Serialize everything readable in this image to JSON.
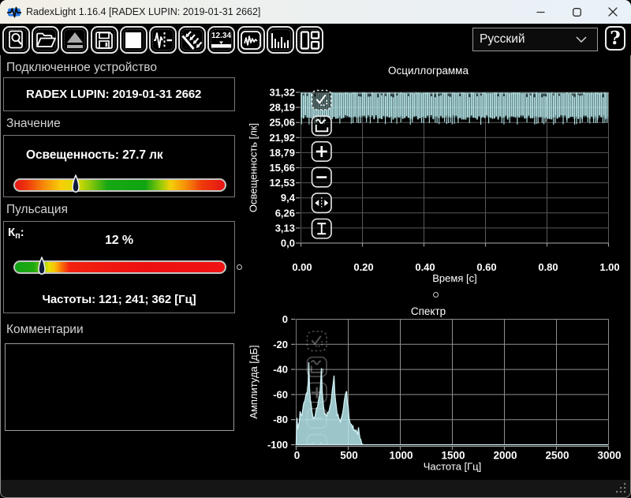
{
  "window": {
    "title": "RadexLight 1.16.4 [RADEX LUPIN: 2019-01-31 2662]",
    "caption_buttons": [
      "minimize",
      "maximize",
      "close"
    ]
  },
  "toolbar": {
    "buttons": [
      {
        "icon": "find-device"
      },
      {
        "icon": "open-file"
      },
      {
        "icon": "eject-device"
      },
      {
        "icon": "save-file"
      },
      {
        "icon": "stop-square"
      },
      {
        "icon": "pulsation-wave"
      },
      {
        "icon": "light-rays"
      },
      {
        "icon": "numeric-display"
      },
      {
        "icon": "oscillogram-panel"
      },
      {
        "icon": "spectrum-panel"
      },
      {
        "icon": "layout-panels"
      }
    ],
    "language_select": {
      "value": "Русский"
    },
    "help_label": "?"
  },
  "device_section": {
    "header": "Подключенное устройство",
    "device": "RADEX LUPIN: 2019-01-31 2662"
  },
  "value_section": {
    "header": "Значение",
    "value_label": "Освещенность: 27.7 лк",
    "marker_pct": 29.1,
    "gradient_stops": [
      [
        "#e51414",
        0
      ],
      [
        "#ef3b0b",
        6
      ],
      [
        "#f68c0a",
        14
      ],
      [
        "#f8cf07",
        22
      ],
      [
        "#d8dc07",
        30
      ],
      [
        "#7cc40c",
        37
      ],
      [
        "#17a814",
        44
      ],
      [
        "#0fa411",
        62
      ],
      [
        "#8cc90a",
        69
      ],
      [
        "#f3d007",
        74
      ],
      [
        "#f79208",
        81
      ],
      [
        "#ef3b0b",
        89
      ],
      [
        "#e51414",
        100
      ]
    ]
  },
  "pulsation_section": {
    "header": "Пульсация",
    "kp_base": "К",
    "kp_sub": "п",
    "kp_colon": ":",
    "kp_value": "12 %",
    "freq_label": "Частоты: 121; 241; 362 [Гц]",
    "marker_pct": 12.7,
    "gradient_stops": [
      [
        "#0ea312",
        0
      ],
      [
        "#1fa911",
        9
      ],
      [
        "#79c30b",
        13
      ],
      [
        "#e3e306",
        16
      ],
      [
        "#f8c207",
        19
      ],
      [
        "#f87608",
        22
      ],
      [
        "#f32110",
        26
      ],
      [
        "#ee1010",
        60
      ],
      [
        "#f11313",
        100
      ]
    ]
  },
  "comments_section": {
    "header": "Комментарии",
    "text": ""
  },
  "chart_toolbar": {
    "buttons": [
      {
        "icon": "select-check"
      },
      {
        "icon": "zoom-extents"
      },
      {
        "icon": "zoom-in"
      },
      {
        "icon": "zoom-out"
      },
      {
        "icon": "fit-horizontal"
      },
      {
        "icon": "fit-vertical"
      }
    ]
  },
  "chart_data": [
    {
      "type": "line",
      "name": "oscillogram",
      "title": "Осциллограмма",
      "xlabel": "Время [с]",
      "ylabel": "Освещенность [лк]",
      "xlim": [
        0,
        1
      ],
      "ylim": [
        0,
        31.32
      ],
      "x_tick_labels": [
        "0.00",
        "0.20",
        "0.40",
        "0.60",
        "0.80",
        "1.00"
      ],
      "y_tick_labels": [
        "0,0",
        "3,13",
        "6,26",
        "9,4",
        "12,53",
        "15,66",
        "18,79",
        "21,92",
        "25,06",
        "28,19",
        "31,32"
      ],
      "grid": true,
      "signal": {
        "description": "light flicker waveform, 1 s record",
        "mean_lux": 27.7,
        "min_lux": 24.6,
        "max_lux": 31.3,
        "frequencies_hz": [
          121,
          241,
          362
        ]
      }
    },
    {
      "type": "area",
      "name": "spectrum",
      "title": "Спектр",
      "xlabel": "Частота [Гц]",
      "ylabel": "Амплитуда [дБ]",
      "xlim": [
        0,
        3000
      ],
      "ylim": [
        -100,
        0
      ],
      "x_tick_labels": [
        "0",
        "500",
        "1000",
        "1500",
        "2000",
        "2500",
        "3000"
      ],
      "y_tick_labels": [
        "0",
        "-20",
        "-40",
        "-60",
        "-80",
        "-100"
      ],
      "grid": true,
      "peaks": [
        {
          "freq_hz": 121,
          "db": -33.5
        },
        {
          "freq_hz": 241,
          "db": -34
        },
        {
          "freq_hz": 362,
          "db": -40
        },
        {
          "freq_hz": 483,
          "db": -53
        },
        {
          "freq_hz": 600,
          "db": -82
        }
      ],
      "envelope_db": [
        [
          0,
          -98
        ],
        [
          3,
          -68
        ],
        [
          6,
          -70
        ],
        [
          9,
          -84
        ],
        [
          14,
          -88
        ],
        [
          20,
          -86
        ],
        [
          26,
          -82
        ],
        [
          32,
          -79
        ],
        [
          38,
          -72
        ],
        [
          41,
          -53
        ],
        [
          44,
          -74
        ],
        [
          50,
          -77
        ],
        [
          58,
          -73
        ],
        [
          66,
          -70
        ],
        [
          75,
          -67
        ],
        [
          85,
          -64
        ],
        [
          95,
          -62
        ],
        [
          103,
          -60
        ],
        [
          110,
          -57
        ],
        [
          116,
          -51
        ],
        [
          119.5,
          -41
        ],
        [
          121,
          -33.5
        ],
        [
          123,
          -41
        ],
        [
          126,
          -52
        ],
        [
          133,
          -60
        ],
        [
          140,
          -66
        ],
        [
          150,
          -71
        ],
        [
          158,
          -75
        ],
        [
          166,
          -77.5
        ],
        [
          175,
          -78
        ],
        [
          183,
          -76.5
        ],
        [
          192,
          -73
        ],
        [
          200,
          -71
        ],
        [
          208,
          -68
        ],
        [
          216,
          -64
        ],
        [
          224,
          -60
        ],
        [
          230,
          -56
        ],
        [
          236,
          -50
        ],
        [
          239.5,
          -40
        ],
        [
          241,
          -34
        ],
        [
          243,
          -41
        ],
        [
          246,
          -52
        ],
        [
          253,
          -62
        ],
        [
          260,
          -68
        ],
        [
          268,
          -72
        ],
        [
          276,
          -76.5
        ],
        [
          285,
          -77.5
        ],
        [
          295,
          -76.5
        ],
        [
          305,
          -75.5
        ],
        [
          315,
          -72
        ],
        [
          325,
          -69
        ],
        [
          335,
          -64
        ],
        [
          344,
          -59
        ],
        [
          351,
          -54
        ],
        [
          358,
          -50
        ],
        [
          361,
          -42
        ],
        [
          362,
          -40
        ],
        [
          364,
          -46
        ],
        [
          368,
          -56
        ],
        [
          376,
          -64
        ],
        [
          384,
          -71
        ],
        [
          392,
          -75.5
        ],
        [
          400,
          -78
        ],
        [
          410,
          -80.5
        ],
        [
          420,
          -81.5
        ],
        [
          430,
          -79.5
        ],
        [
          440,
          -76
        ],
        [
          450,
          -72
        ],
        [
          460,
          -67
        ],
        [
          468,
          -62
        ],
        [
          477,
          -59
        ],
        [
          481,
          -54
        ],
        [
          483,
          -53
        ],
        [
          486,
          -60
        ],
        [
          490,
          -66
        ],
        [
          498,
          -70
        ],
        [
          505,
          -76
        ],
        [
          512,
          -81
        ],
        [
          520,
          -84
        ],
        [
          530,
          -83
        ],
        [
          540,
          -86
        ],
        [
          550,
          -85
        ],
        [
          558,
          -88
        ],
        [
          566,
          -87
        ],
        [
          575,
          -90
        ],
        [
          583,
          -89
        ],
        [
          590,
          -92
        ],
        [
          596,
          -93
        ],
        [
          600,
          -82
        ],
        [
          604,
          -90
        ],
        [
          610,
          -94
        ],
        [
          616,
          -96
        ],
        [
          624,
          -98
        ],
        [
          634,
          -99.5
        ],
        [
          645,
          -100
        ],
        [
          3000,
          -100
        ]
      ]
    }
  ],
  "colors": {
    "trace": "#b9e8eb",
    "trace_fill": "rgba(183,231,236,0.85)",
    "grid_osc": "#585858",
    "grid_spec": "#8f8f8f",
    "accent_blue_icon": "#2479e4"
  }
}
